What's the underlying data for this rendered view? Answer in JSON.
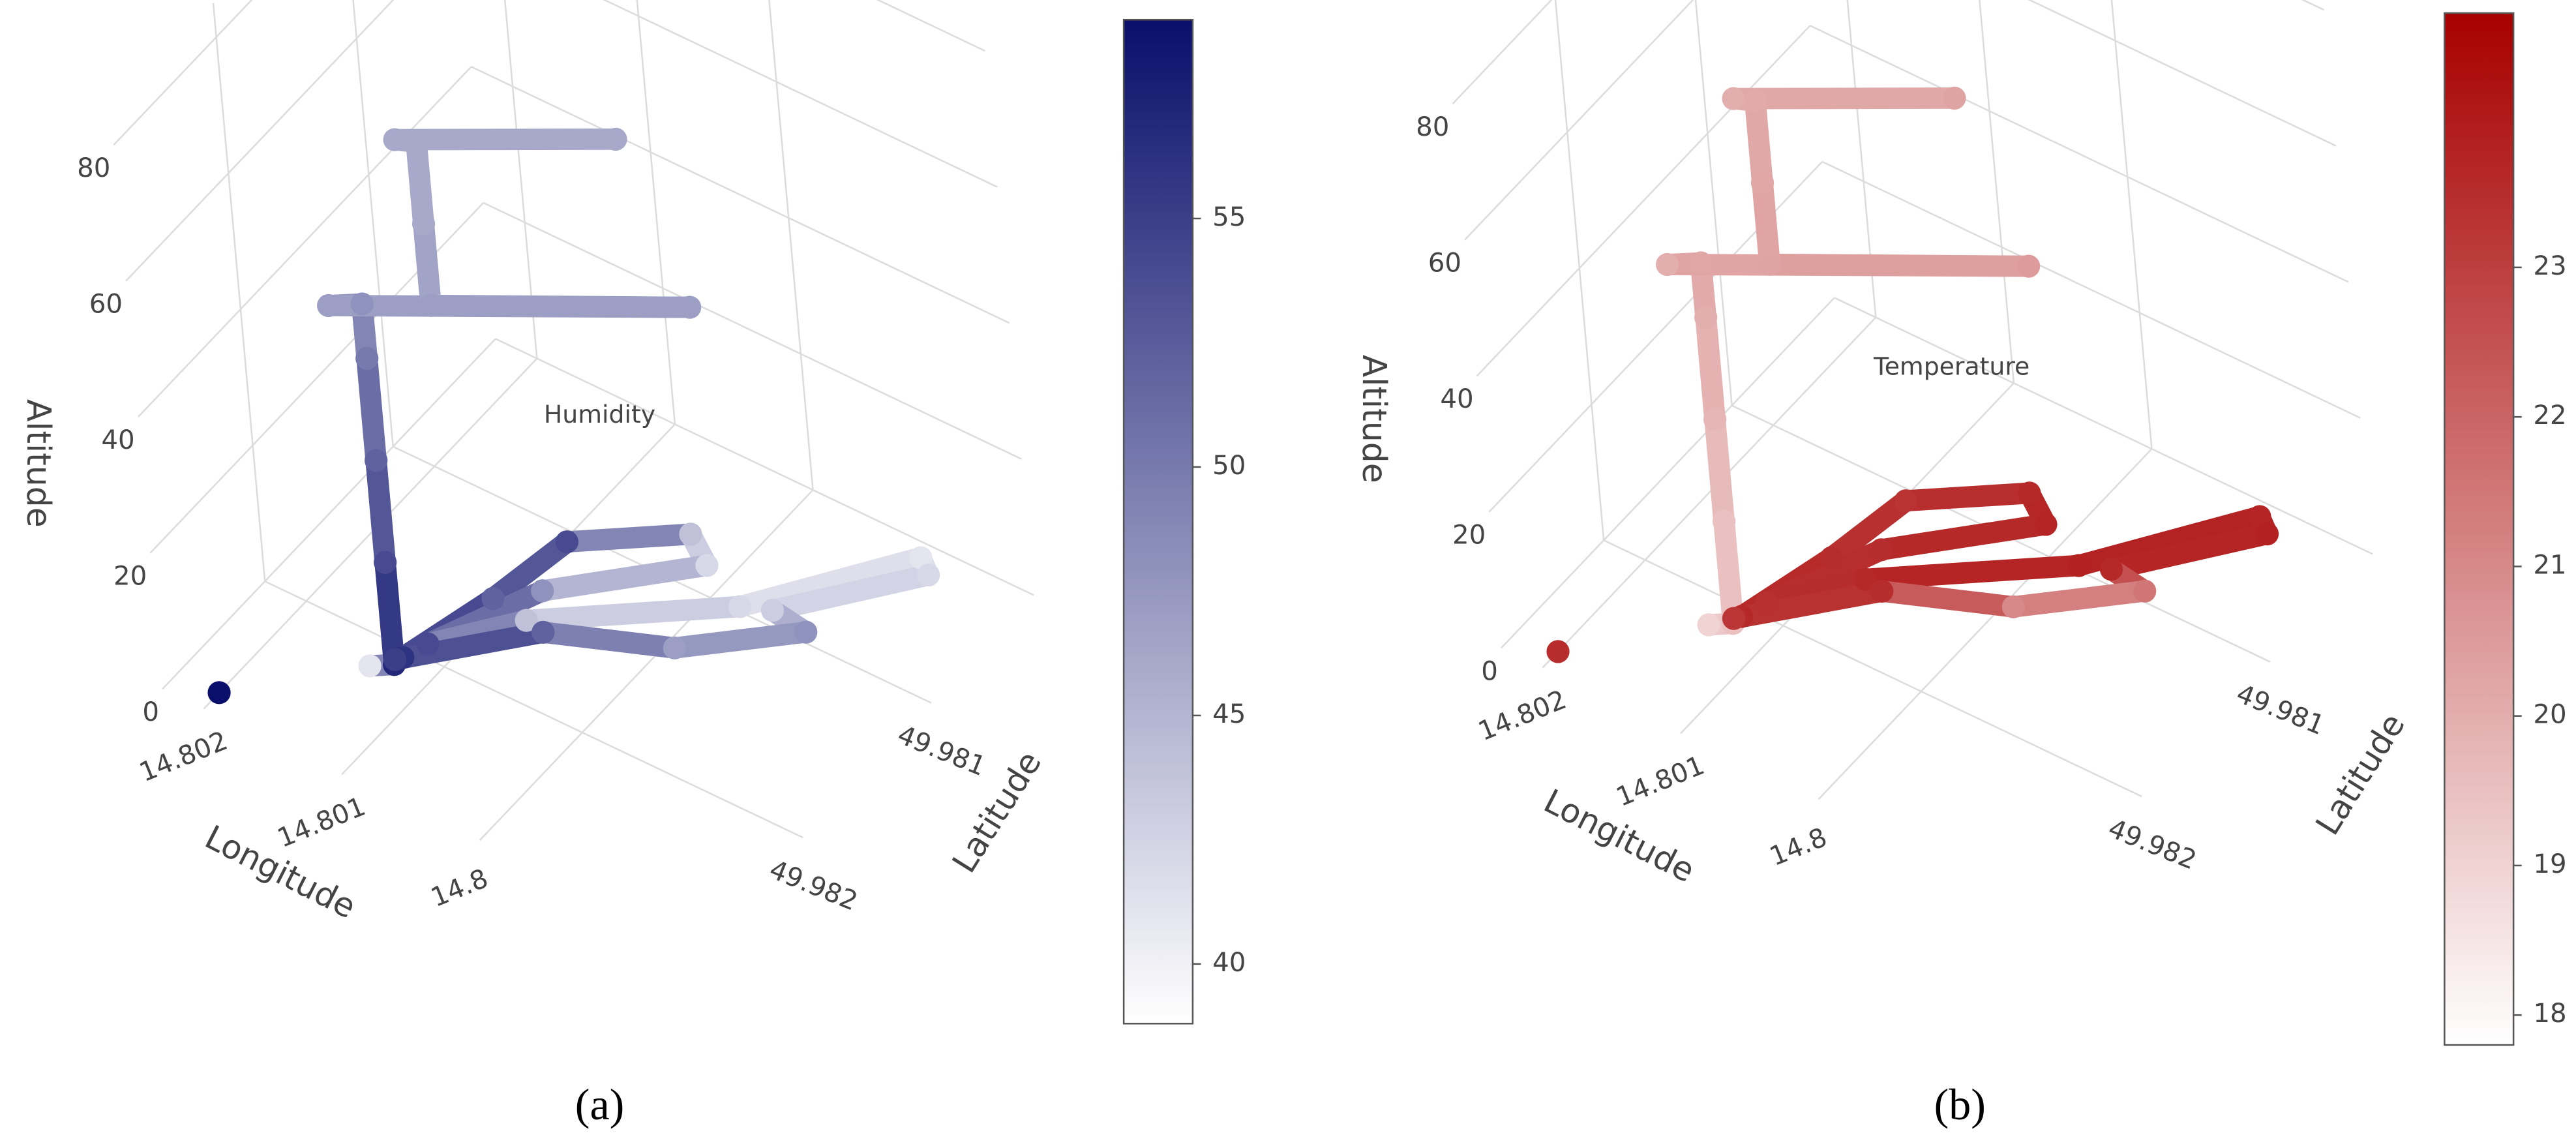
{
  "chart_data": [
    {
      "type": "scatter3d",
      "annotation": "Humidity",
      "xlabel": "Longitude",
      "ylabel": "Latitude",
      "zlabel": "Altitude",
      "caption": "(a)",
      "x": [
        14.802,
        null,
        14.80134,
        14.80126,
        14.80126,
        14.80126,
        14.80126,
        14.80126,
        14.80142,
        14.79961,
        14.80091,
        14.80091,
        14.80091,
        14.80103,
        14.79993,
        null,
        14.80118,
        14.80101,
        14.80091,
        14.80033,
        14.8001,
        14.8008,
        14.80112,
        14.80074,
        14.79974,
        14.79907,
        14.79895,
        14.79956,
        14.79929,
        14.79987,
        14.8006,
        14.80121
      ],
      "y": [
        49.98268,
        null,
        49.98221,
        49.98211,
        49.98211,
        49.98211,
        49.98211,
        49.98211,
        49.9822,
        49.98133,
        49.98195,
        49.98195,
        49.98195,
        49.98199,
        49.98145,
        null,
        49.98212,
        49.9816,
        49.98113,
        49.98079,
        49.98091,
        49.98144,
        49.98199,
        49.98163,
        49.98104,
        49.98035,
        49.98042,
        49.98098,
        49.98101,
        49.98141,
        49.98165,
        49.98215
      ],
      "z": [
        0,
        null,
        1,
        0,
        15,
        30,
        45,
        53,
        53,
        53,
        53,
        65,
        77,
        77,
        77,
        null,
        2,
        2,
        2,
        2,
        2,
        2,
        2,
        2,
        2,
        2,
        2,
        2,
        2,
        2,
        2,
        2
      ],
      "values": [
        59,
        null,
        41,
        57,
        54,
        52,
        50,
        48,
        47,
        47,
        47,
        46,
        46,
        46,
        46,
        null,
        56,
        52,
        54,
        44,
        42,
        48,
        54,
        44,
        42,
        41,
        42,
        43,
        48,
        47,
        52,
        55
      ],
      "colorscale": [
        "#ffffff",
        "#0a0f6b"
      ],
      "clim": [
        38.8,
        59
      ],
      "cticks": [
        40,
        45,
        50,
        55
      ],
      "xlim": [
        14.7984,
        14.8023
      ],
      "ylim": [
        49.9802,
        49.9828
      ],
      "zlim": [
        0,
        85
      ],
      "xticks": [
        14.8,
        14.801,
        14.802
      ],
      "yticks": [
        49.981,
        49.982
      ],
      "zticks": [
        0,
        20,
        40,
        60,
        80
      ],
      "grid": true
    },
    {
      "type": "scatter3d",
      "annotation": "Temperature",
      "xlabel": "Longitude",
      "ylabel": "Latitude",
      "zlabel": "Altitude",
      "caption": "(b)",
      "x": [
        14.802,
        null,
        14.80134,
        14.80126,
        14.80126,
        14.80126,
        14.80126,
        14.80126,
        14.80142,
        14.79961,
        14.80091,
        14.80091,
        14.80091,
        14.80103,
        14.79993,
        null,
        14.80118,
        14.80101,
        14.80091,
        14.80033,
        14.8001,
        14.8008,
        14.80112,
        14.80074,
        14.79974,
        14.79907,
        14.79895,
        14.79956,
        14.79929,
        14.79987,
        14.8006,
        14.80121
      ],
      "y": [
        49.98268,
        null,
        49.98221,
        49.98211,
        49.98211,
        49.98211,
        49.98211,
        49.98211,
        49.9822,
        49.98133,
        49.98195,
        49.98195,
        49.98195,
        49.98199,
        49.98145,
        null,
        49.98212,
        49.9816,
        49.98113,
        49.98079,
        49.98091,
        49.98144,
        49.98199,
        49.98163,
        49.98104,
        49.98035,
        49.98042,
        49.98098,
        49.98101,
        49.98141,
        49.98165,
        49.98215
      ],
      "z": [
        0,
        null,
        1,
        0,
        15,
        30,
        45,
        53,
        53,
        53,
        53,
        65,
        77,
        77,
        77,
        null,
        2,
        2,
        2,
        2,
        2,
        2,
        2,
        2,
        2,
        2,
        2,
        2,
        2,
        2,
        2,
        2
      ],
      "values": [
        23.5,
        null,
        19,
        19.5,
        19.5,
        19.8,
        20,
        20.2,
        20,
        20.5,
        20.3,
        20.2,
        20.1,
        20,
        20.3,
        null,
        23.6,
        23.5,
        23.3,
        23.6,
        23.7,
        23.5,
        23.4,
        23.6,
        23.8,
        23.7,
        23.8,
        23.6,
        21.5,
        21,
        23.5,
        23.2
      ],
      "colorscale": [
        "#ffffff",
        "#a80000"
      ],
      "clim": [
        17.8,
        24.7
      ],
      "cticks": [
        18,
        19,
        20,
        21,
        22,
        23
      ],
      "xlim": [
        14.7984,
        14.8023
      ],
      "ylim": [
        49.9802,
        49.9828
      ],
      "zlim": [
        0,
        85
      ],
      "xticks": [
        14.8,
        14.801,
        14.802
      ],
      "yticks": [
        49.981,
        49.982
      ],
      "zticks": [
        0,
        20,
        40,
        60,
        80
      ],
      "grid": true
    }
  ]
}
